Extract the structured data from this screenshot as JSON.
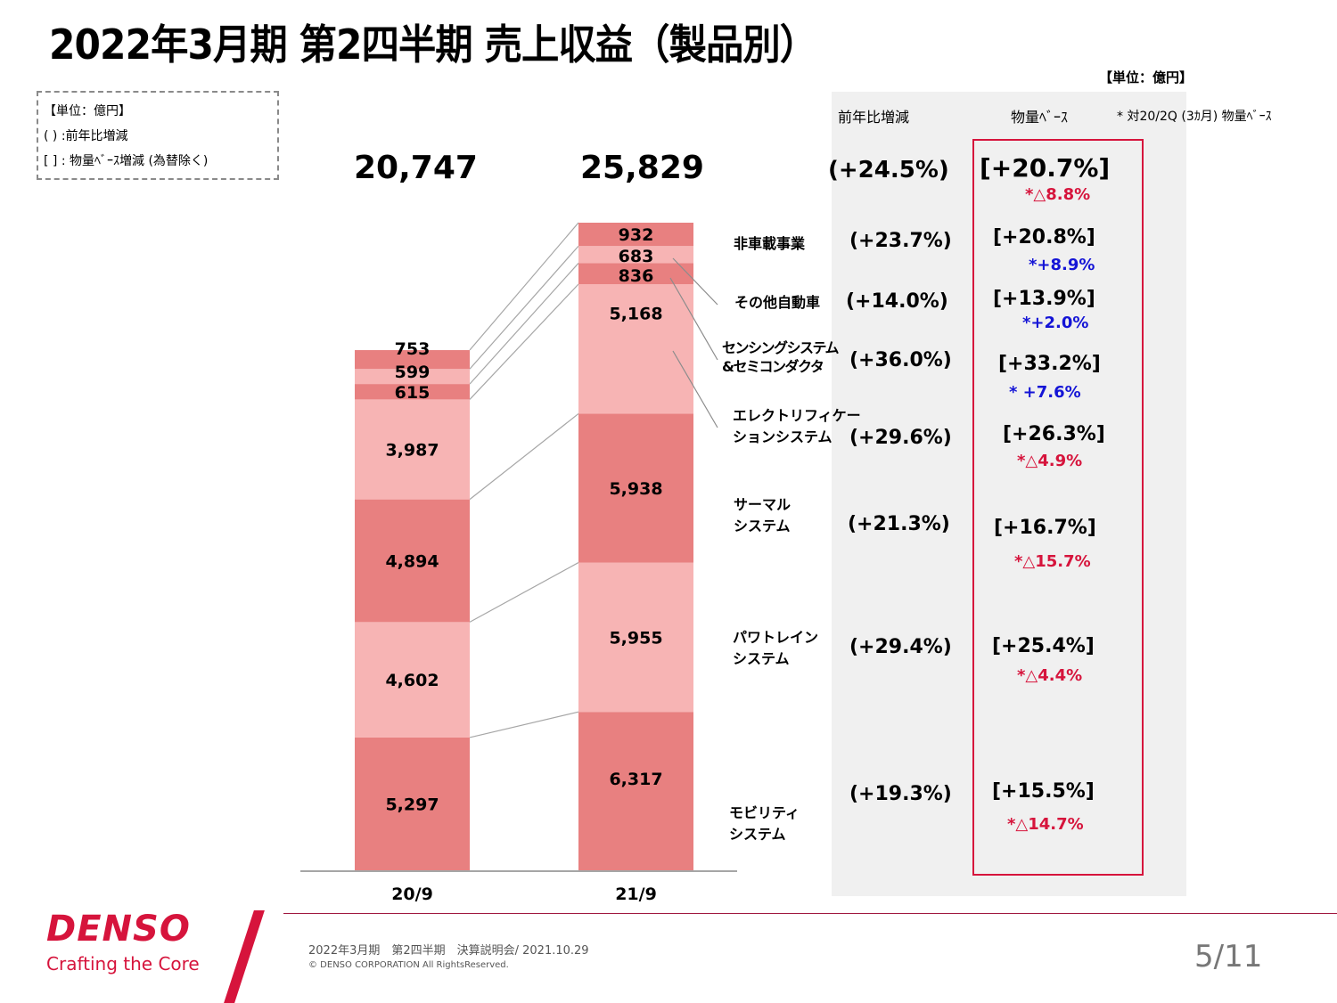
{
  "title": "2022年3月期 第2四半期 売上収益（製品別）",
  "unit_label": "【単位：億円】",
  "legend": {
    "unit": "【単位：億円】",
    "paren": "(  ) :前年比増減",
    "bracket": "[  ] : 物量ﾍﾞｰｽ増減 (為替除く)"
  },
  "table_headers": {
    "yoy": "前年比増減",
    "volume": "物量ﾍﾞｰｽ",
    "note": "* 対20/2Q (3ｶ月) 物量ﾍﾞｰｽ"
  },
  "totals": {
    "yoy": "(+24.5%)",
    "volume": "[+20.7%]",
    "vs_q": "*△8.8%"
  },
  "rows": [
    {
      "category": "非車載事業",
      "yoy": "(+23.7%)",
      "volume": "[+20.8%]",
      "vs_q": "*+8.9%",
      "vs_q_color": "blue"
    },
    {
      "category": "その他自動車",
      "yoy": "(+14.0%)",
      "volume": "[+13.9%]",
      "vs_q": "*+2.0%",
      "vs_q_color": "blue"
    },
    {
      "category": "センシングシステム&セミコンダクタ",
      "category_line1": "センシングシステム",
      "category_line2": "&セミコンダクタ",
      "yoy": "(+36.0%)",
      "volume": "[+33.2%]",
      "vs_q": "* +7.6%",
      "vs_q_color": "blue"
    },
    {
      "category": "エレクトリフィケーションシステム",
      "category_line1": "エレクトリフィケー",
      "category_line2": "ションシステム",
      "yoy": "(+29.6%)",
      "volume": "[+26.3%]",
      "vs_q": "*△4.9%",
      "vs_q_color": "red"
    },
    {
      "category": "サーマルシステム",
      "category_line1": "サーマル",
      "category_line2": "システム",
      "yoy": "(+21.3%)",
      "volume": "[+16.7%]",
      "vs_q": "*△15.7%",
      "vs_q_color": "red"
    },
    {
      "category": "パワトレインシステム",
      "category_line1": "パワトレイン",
      "category_line2": "システム",
      "yoy": "(+29.4%)",
      "volume": "[+25.4%]",
      "vs_q": "*△4.4%",
      "vs_q_color": "red"
    },
    {
      "category": "モビリティシステム",
      "category_line1": "モビリティ",
      "category_line2": "システム",
      "yoy": "(+19.3%)",
      "volume": "[+15.5%]",
      "vs_q": "*△14.7%",
      "vs_q_color": "red"
    }
  ],
  "colors": {
    "dark_segment": "#e88080",
    "light_segment": "#f7b4b4",
    "accent_red": "#d6143c",
    "accent_blue": "#1414d6",
    "panel_gray": "#f0f0f0"
  },
  "chart_data": {
    "type": "bar",
    "stacked": true,
    "title": "2022年3月期 第2四半期 売上収益（製品別）",
    "unit": "億円",
    "categories": [
      "20/9",
      "21/9"
    ],
    "totals": [
      "20,747",
      "25,829"
    ],
    "series": [
      {
        "name": "モビリティシステム",
        "values": [
          5297,
          6317
        ],
        "labels": [
          "5,297",
          "6,317"
        ]
      },
      {
        "name": "パワトレインシステム",
        "values": [
          4602,
          5955
        ],
        "labels": [
          "4,602",
          "5,955"
        ]
      },
      {
        "name": "サーマルシステム",
        "values": [
          4894,
          5938
        ],
        "labels": [
          "4,894",
          "5,938"
        ]
      },
      {
        "name": "エレクトリフィケーションシステム",
        "values": [
          3987,
          5168
        ],
        "labels": [
          "3,987",
          "5,168"
        ]
      },
      {
        "name": "センシングシステム&セミコンダクタ",
        "values": [
          615,
          836
        ],
        "labels": [
          "615",
          "836"
        ]
      },
      {
        "name": "その他自動車",
        "values": [
          599,
          683
        ],
        "labels": [
          "599",
          "683"
        ]
      },
      {
        "name": "非車載事業",
        "values": [
          753,
          932
        ],
        "labels": [
          "753",
          "932"
        ]
      }
    ],
    "xlabel": "",
    "ylabel": "",
    "grid": false,
    "legend": "right"
  },
  "footer": {
    "brand": "DENSO",
    "tagline": "Crafting the Core",
    "event": "2022年3月期　第2四半期　決算説明会/ 2021.10.29",
    "copyright": "© DENSO CORPORATION All RightsReserved.",
    "page": "5/11"
  }
}
